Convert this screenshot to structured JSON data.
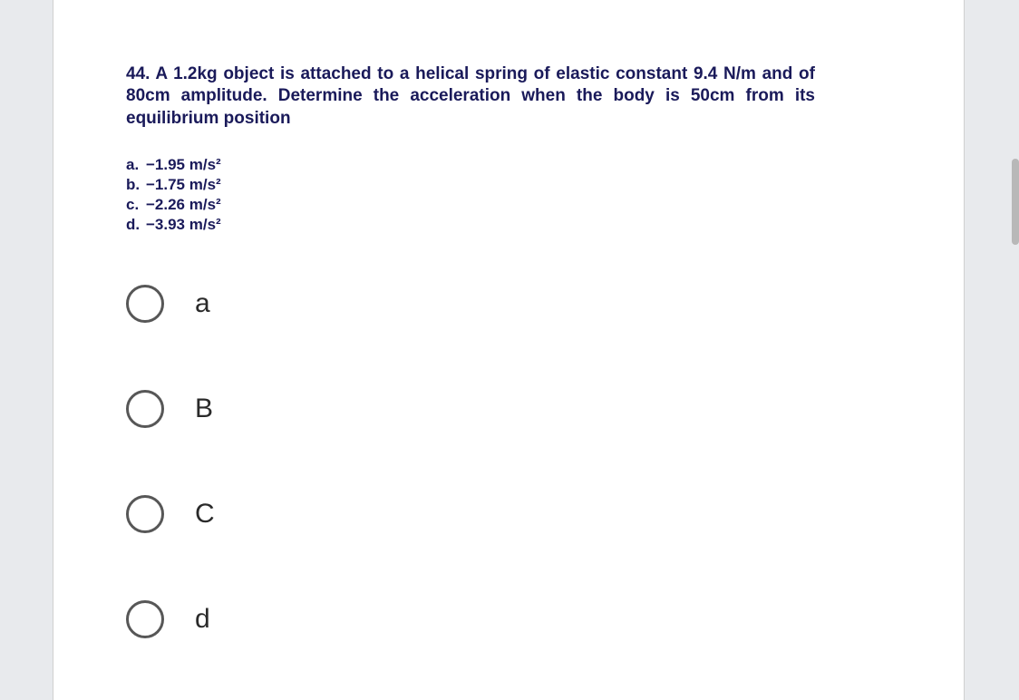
{
  "question": {
    "text": "44. A 1.2kg object is attached to a helical spring of elastic constant 9.4 N/m and of 80cm amplitude. Determine the acceleration when the body is 50cm from its equilibrium position",
    "answers": [
      {
        "key": "a.",
        "value": "−1.95 m/s²"
      },
      {
        "key": "b.",
        "value": "−1.75 m/s²"
      },
      {
        "key": "c.",
        "value": "−2.26 m/s²"
      },
      {
        "key": "d.",
        "value": "−3.93 m/s²"
      }
    ]
  },
  "options": [
    {
      "label": "a"
    },
    {
      "label": "B"
    },
    {
      "label": "C"
    },
    {
      "label": "d"
    }
  ],
  "colors": {
    "page_bg": "#ffffff",
    "outer_bg": "#e8eaed",
    "question_text": "#1a1a5a",
    "radio_border": "#575757",
    "radio_label": "#2a2a2a",
    "scrollbar": "#b8b8b8"
  }
}
